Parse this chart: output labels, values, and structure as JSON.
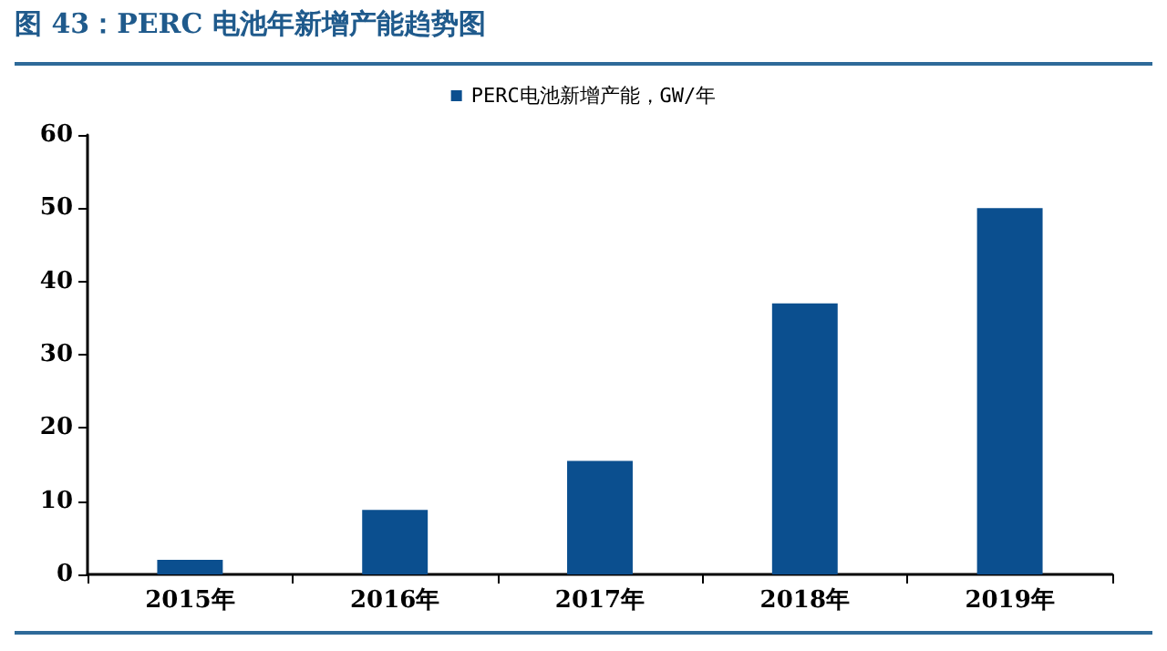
{
  "chart_data": {
    "type": "bar",
    "title": "图 43：PERC 电池年新增产能趋势图",
    "categories": [
      "2015年",
      "2016年",
      "2017年",
      "2018年",
      "2019年"
    ],
    "series": [
      {
        "name": "PERC电池新增产能，GW/年",
        "color": "#0b4f8f",
        "values": [
          2,
          8.8,
          15.5,
          37,
          50
        ]
      }
    ],
    "ylim": [
      0,
      60
    ],
    "yticks": [
      0,
      10,
      20,
      30,
      40,
      50,
      60
    ],
    "grid": false,
    "legend": "top"
  }
}
